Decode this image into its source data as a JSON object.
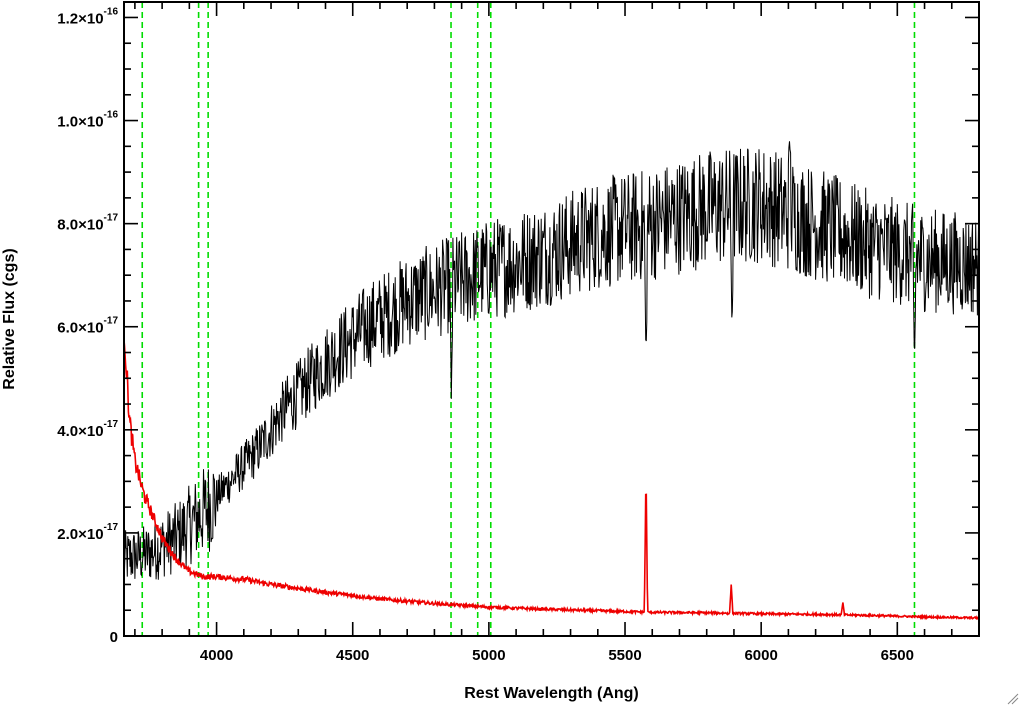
{
  "chart_data": {
    "type": "line",
    "title": "",
    "xlabel": "Rest Wavelength (Ang)",
    "ylabel": "Relative Flux (cgs)",
    "xlim": [
      3660,
      6800
    ],
    "ylim": [
      0,
      1.23e-16
    ],
    "x_ticks": [
      4000,
      4500,
      5000,
      5500,
      6000,
      6500
    ],
    "x_tick_labels": [
      "4000",
      "4500",
      "5000",
      "5500",
      "6000",
      "6500"
    ],
    "y_ticks": [
      {
        "value": 0,
        "mantissa": "0",
        "exponent": ""
      },
      {
        "value": 2e-17,
        "mantissa": "2.0×10",
        "exponent": "-17"
      },
      {
        "value": 4e-17,
        "mantissa": "4.0×10",
        "exponent": "-17"
      },
      {
        "value": 6e-17,
        "mantissa": "6.0×10",
        "exponent": "-17"
      },
      {
        "value": 8e-17,
        "mantissa": "8.0×10",
        "exponent": "-17"
      },
      {
        "value": 1e-16,
        "mantissa": "1.0×10",
        "exponent": "-16"
      },
      {
        "value": 1.2e-16,
        "mantissa": "1.2×10",
        "exponent": "-16"
      }
    ],
    "reference_lines_x": [
      3727,
      3934,
      3969,
      4861,
      4959,
      5007,
      6563
    ],
    "reference_line_color": "#00dd00",
    "series": [
      {
        "color": "#000000",
        "noise_scale": 0.14,
        "values": [
          [
            3660,
            1.5e-17
          ],
          [
            3750,
            1.6e-17
          ],
          [
            3850,
            1.9e-17
          ],
          [
            3950,
            2.4e-17
          ],
          [
            4050,
            3e-17
          ],
          [
            4150,
            3.6e-17
          ],
          [
            4250,
            4.4e-17
          ],
          [
            4400,
            5.3e-17
          ],
          [
            4550,
            6e-17
          ],
          [
            4700,
            6.5e-17
          ],
          [
            4850,
            6.8e-17
          ],
          [
            5000,
            7.1e-17
          ],
          [
            5200,
            7.4e-17
          ],
          [
            5400,
            7.8e-17
          ],
          [
            5600,
            8e-17
          ],
          [
            5800,
            8.3e-17
          ],
          [
            6000,
            8.4e-17
          ],
          [
            6200,
            8e-17
          ],
          [
            6400,
            7.6e-17
          ],
          [
            6600,
            7.3e-17
          ],
          [
            6800,
            7.2e-17
          ]
        ],
        "features": [
          {
            "x": 4862,
            "y": 4.6e-17
          },
          {
            "x": 5577,
            "y": 5.2e-17
          },
          {
            "x": 5893,
            "y": 5.9e-17
          },
          {
            "x": 6563,
            "y": 5.2e-17
          },
          {
            "x": 6105,
            "y": 9.8e-17
          }
        ]
      },
      {
        "color": "#ee0000",
        "noise_scale": 0.05,
        "values": [
          [
            3660,
            6e-17
          ],
          [
            3680,
            4.2e-17
          ],
          [
            3700,
            3.4e-17
          ],
          [
            3730,
            2.8e-17
          ],
          [
            3760,
            2.4e-17
          ],
          [
            3800,
            1.9e-17
          ],
          [
            3850,
            1.5e-17
          ],
          [
            3900,
            1.25e-17
          ],
          [
            3950,
            1.15e-17
          ],
          [
            4000,
            1.15e-17
          ],
          [
            4100,
            1.1e-17
          ],
          [
            4200,
            1e-17
          ],
          [
            4400,
            8.5e-18
          ],
          [
            4600,
            7.2e-18
          ],
          [
            4800,
            6.3e-18
          ],
          [
            5000,
            5.6e-18
          ],
          [
            5200,
            5.2e-18
          ],
          [
            5400,
            4.9e-18
          ],
          [
            5600,
            4.6e-18
          ],
          [
            5800,
            4.5e-18
          ],
          [
            6000,
            4.3e-18
          ],
          [
            6200,
            4.2e-18
          ],
          [
            6400,
            4e-18
          ],
          [
            6600,
            3.7e-18
          ],
          [
            6800,
            3.5e-18
          ]
        ],
        "features": [
          {
            "x": 5577,
            "y": 3.2e-17
          },
          {
            "x": 5890,
            "y": 1e-17
          },
          {
            "x": 6300,
            "y": 6.5e-18
          }
        ]
      }
    ]
  }
}
